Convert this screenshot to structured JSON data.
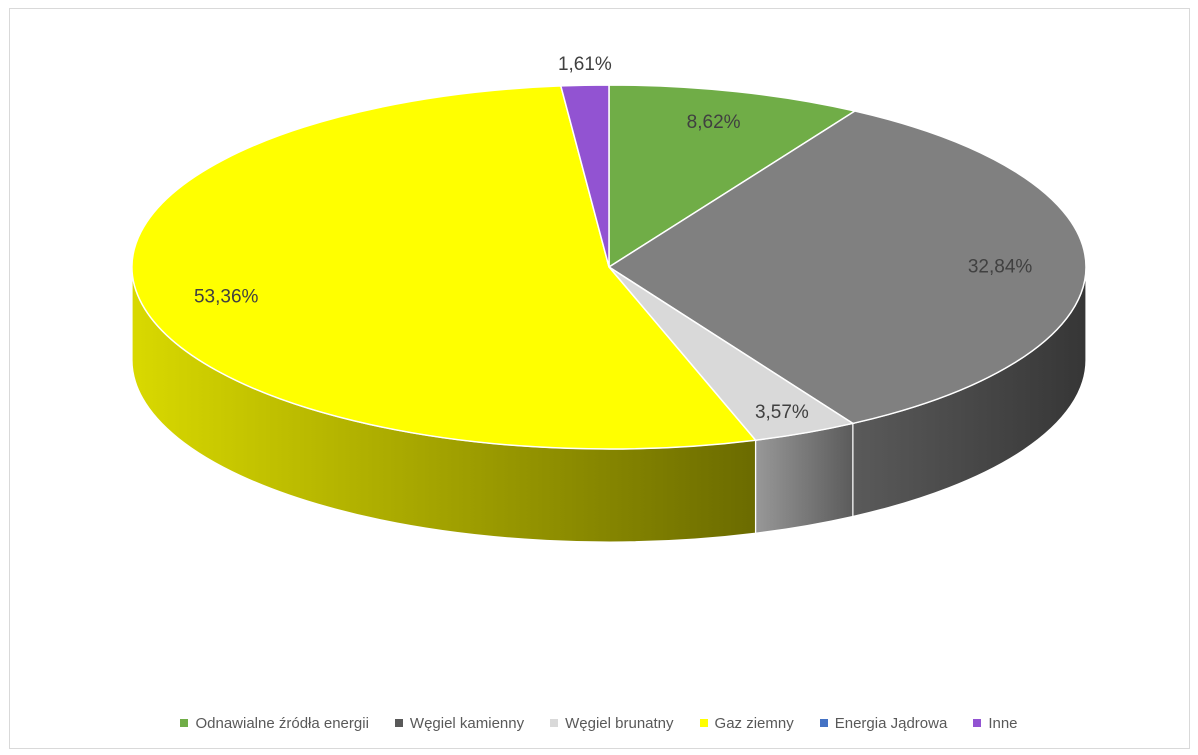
{
  "chart_data": {
    "type": "pie",
    "variant": "3d",
    "title": "",
    "categories": [
      "Odnawialne źródła energii",
      "Węgiel kamienny",
      "Węgiel brunatny",
      "Gaz ziemny",
      "Energia Jądrowa",
      "Inne"
    ],
    "values": [
      8.62,
      32.84,
      3.57,
      53.36,
      0,
      1.61
    ],
    "data_labels": [
      "8,62%",
      "32,84%",
      "3,57%",
      "53,36%",
      "",
      "1,61%"
    ],
    "colors": [
      "#70ad47",
      "#808080",
      "#d9d9d9",
      "#ffff00",
      "#4472c4",
      "#9253d2"
    ],
    "legend": {
      "position": "bottom",
      "items": [
        {
          "label": "Odnawialne źródła energii",
          "color": "#70ad47"
        },
        {
          "label": "Węgiel kamienny",
          "color": "#595959"
        },
        {
          "label": "Węgiel brunatny",
          "color": "#d9d9d9"
        },
        {
          "label": "Gaz ziemny",
          "color": "#ffff00"
        },
        {
          "label": "Energia Jądrowa",
          "color": "#4472c4"
        },
        {
          "label": "Inne",
          "color": "#9253d2"
        }
      ]
    }
  }
}
